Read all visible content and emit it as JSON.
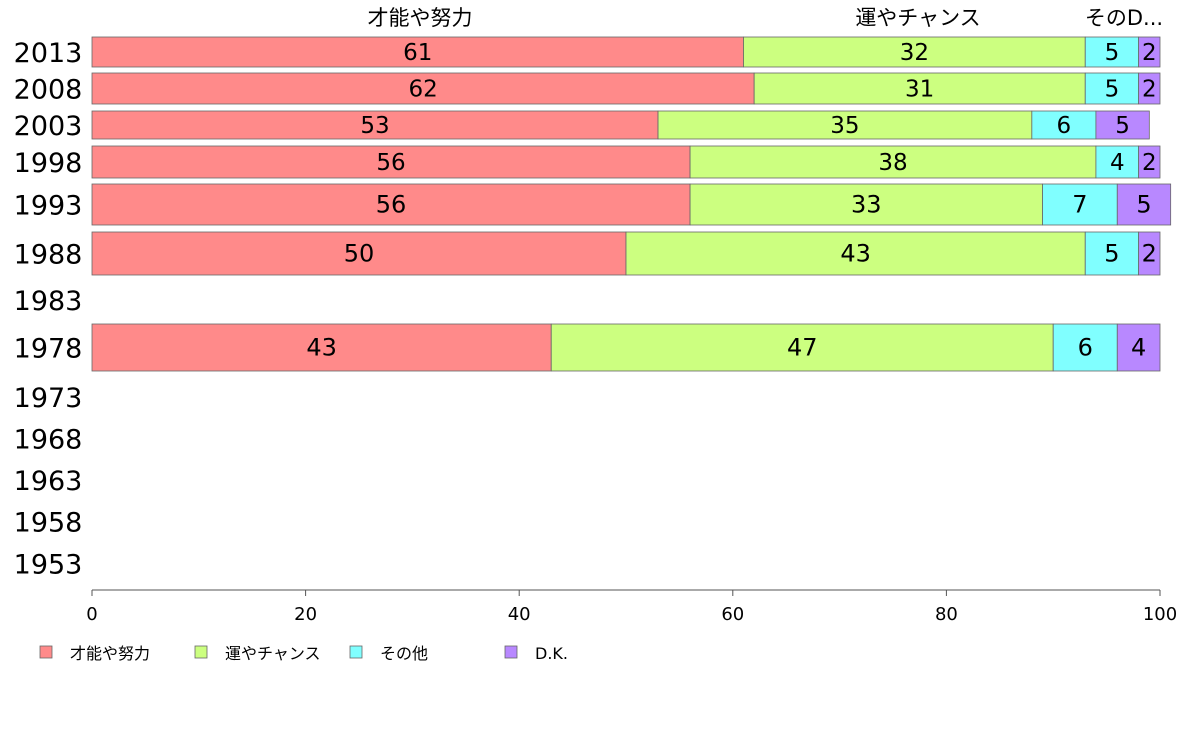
{
  "chart_data": {
    "type": "bar",
    "orientation": "horizontal",
    "stacked": true,
    "categories": [
      "2013",
      "2008",
      "2003",
      "1998",
      "1993",
      "1988",
      "1983",
      "1978",
      "1973",
      "1968",
      "1963",
      "1958",
      "1953"
    ],
    "series": [
      {
        "name": "才能や努力",
        "values": [
          61,
          62,
          53,
          56,
          56,
          50,
          null,
          43,
          null,
          null,
          null,
          null,
          null
        ],
        "color": "#ff8a8a"
      },
      {
        "name": "運やチャンス",
        "values": [
          32,
          31,
          35,
          38,
          33,
          43,
          null,
          47,
          null,
          null,
          null,
          null,
          null
        ],
        "color": "#ccff80"
      },
      {
        "name": "その他",
        "values": [
          5,
          5,
          6,
          4,
          7,
          5,
          null,
          6,
          null,
          null,
          null,
          null,
          null
        ],
        "color": "#80ffff"
      },
      {
        "name": "D.K.",
        "values": [
          2,
          2,
          5,
          2,
          5,
          2,
          null,
          4,
          null,
          null,
          null,
          null,
          null
        ],
        "color": "#b888ff"
      }
    ],
    "top_labels": [
      "才能や努力",
      "運やチャンス",
      "その他",
      ""
    ],
    "top_label_display": [
      "才能や努力",
      "運やチャンス",
      "そのD...",
      ""
    ],
    "xlim": [
      0,
      100
    ],
    "xticks": [
      0,
      20,
      40,
      60,
      80,
      100
    ],
    "xlabel": "",
    "ylabel": "",
    "title": "",
    "grid": false,
    "legend": "bottom-left",
    "legend_entries": [
      "才能や努力",
      "運やチャンス",
      "その他",
      "D.K."
    ]
  }
}
